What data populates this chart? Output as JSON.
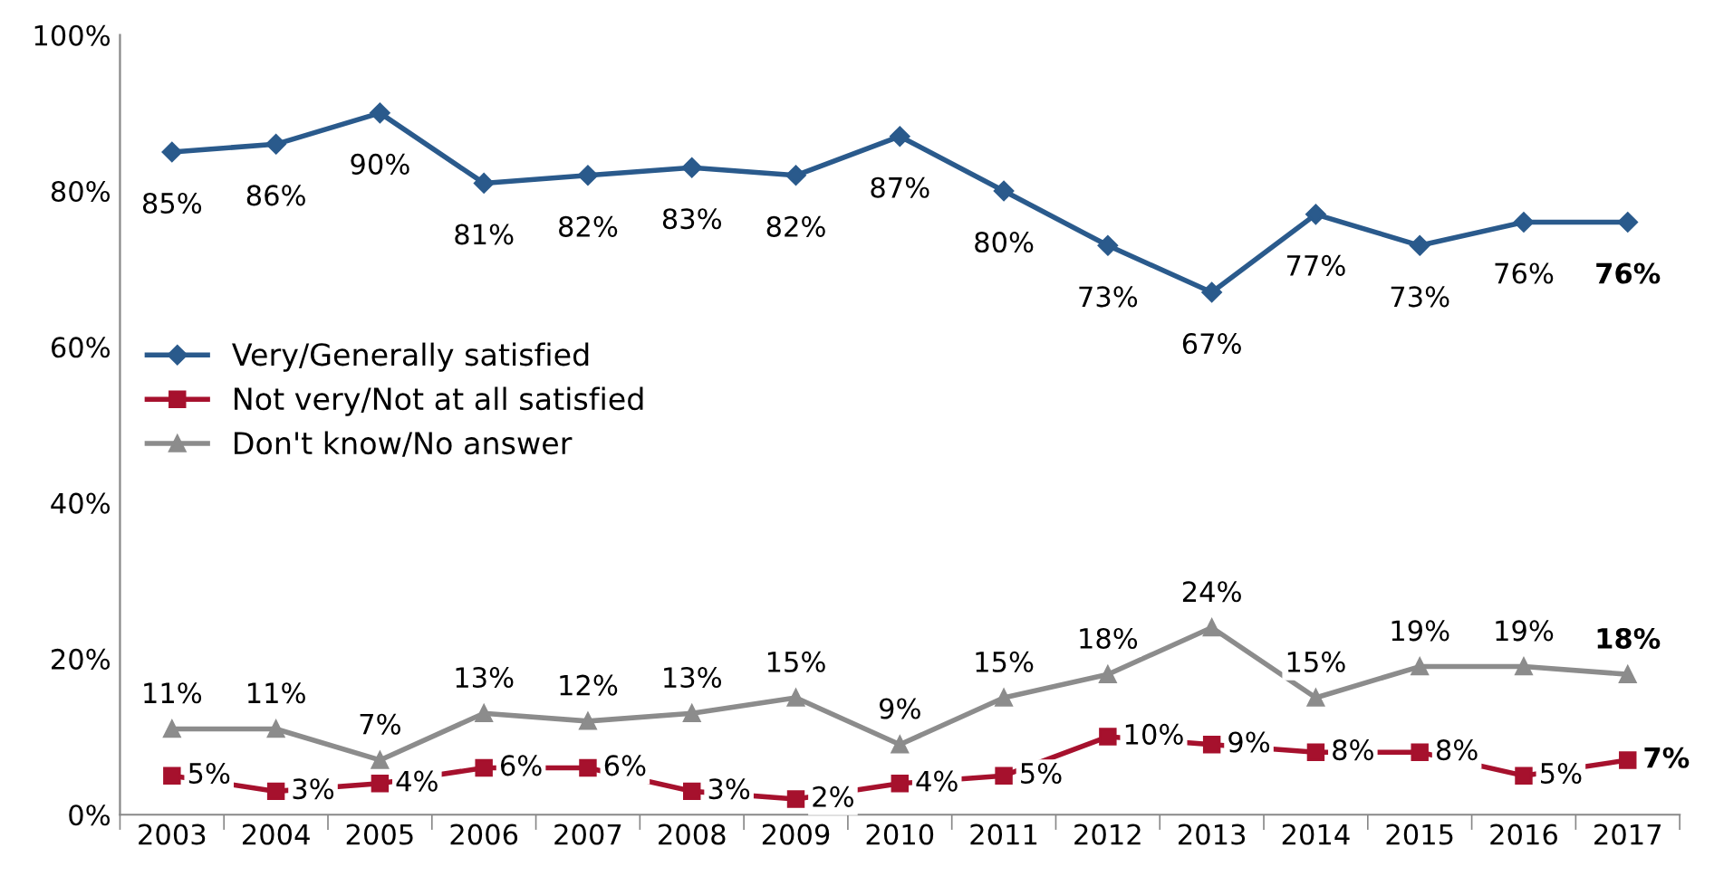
{
  "chart_data": {
    "type": "line",
    "categories": [
      "2003",
      "2004",
      "2005",
      "2006",
      "2007",
      "2008",
      "2009",
      "2010",
      "2011",
      "2012",
      "2013",
      "2014",
      "2015",
      "2016",
      "2017"
    ],
    "series": [
      {
        "name": "Very/Generally satisfied",
        "color": "#2a5a8c",
        "marker": "diamond",
        "values": [
          85,
          86,
          90,
          81,
          82,
          83,
          82,
          87,
          80,
          73,
          67,
          77,
          73,
          76,
          76
        ],
        "value_labels": [
          "85%",
          "86%",
          "90%",
          "81%",
          "82%",
          "83%",
          "82%",
          "87%",
          "80%",
          "73%",
          "67%",
          "77%",
          "73%",
          "76%",
          "76%"
        ]
      },
      {
        "name": "Not very/Not at all satisfied",
        "color": "#a6112d",
        "marker": "square",
        "values": [
          5,
          3,
          4,
          6,
          6,
          3,
          2,
          4,
          5,
          10,
          9,
          8,
          8,
          5,
          7
        ],
        "value_labels": [
          "5%",
          "3%",
          "4%",
          "6%",
          "6%",
          "3%",
          "2%",
          "4%",
          "5%",
          "10%",
          "9%",
          "8%",
          "8%",
          "5%",
          "7%"
        ]
      },
      {
        "name": "Don't know/No answer",
        "color": "#8c8c8c",
        "marker": "triangle",
        "values": [
          11,
          11,
          7,
          13,
          12,
          13,
          15,
          9,
          15,
          18,
          24,
          15,
          19,
          19,
          18
        ],
        "value_labels": [
          "11%",
          "11%",
          "7%",
          "13%",
          "12%",
          "13%",
          "15%",
          "9%",
          "15%",
          "18%",
          "24%",
          "15%",
          "19%",
          "19%",
          "18%"
        ]
      }
    ],
    "ylim": [
      0,
      100
    ],
    "yticks": [
      {
        "value": 0,
        "label": "0%"
      },
      {
        "value": 20,
        "label": "20%"
      },
      {
        "value": 40,
        "label": "40%"
      },
      {
        "value": 60,
        "label": "60%"
      },
      {
        "value": 80,
        "label": "80%"
      },
      {
        "value": 100,
        "label": "100%"
      }
    ],
    "legend": "left",
    "grid": false
  }
}
